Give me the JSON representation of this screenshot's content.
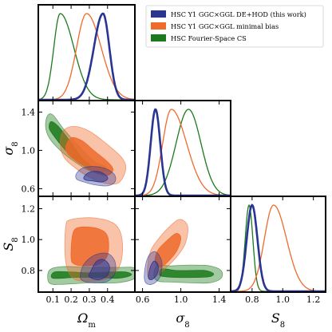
{
  "chart_data": {
    "type": "corner",
    "parameters": [
      {
        "key": "om",
        "label": "Ω",
        "sub": "m",
        "range": [
          0.02,
          0.55
        ],
        "ticks": [
          0.1,
          0.2,
          0.3,
          0.4
        ],
        "tick_labels": [
          "0.1",
          "0.2",
          "0.3",
          "0.4"
        ]
      },
      {
        "key": "s8",
        "label": "σ",
        "sub": "8",
        "range": [
          0.52,
          1.52
        ],
        "ticks": [
          0.6,
          1.0,
          1.4
        ],
        "tick_labels": [
          "0.6",
          "1.0",
          "1.4"
        ]
      },
      {
        "key": "S8",
        "label": "S",
        "sub": "8",
        "range": [
          0.66,
          1.28
        ],
        "ticks": [
          0.8,
          1.0,
          1.2
        ],
        "tick_labels": [
          "0.8",
          "1.0",
          "1.2"
        ]
      }
    ],
    "axis_labels": {
      "x": [
        {
          "text": "Ω",
          "sub": "m"
        },
        {
          "text": "σ",
          "sub": "8"
        },
        {
          "text": "S",
          "sub": "8"
        }
      ],
      "y": [
        {
          "text": "σ",
          "sub": "8"
        },
        {
          "text": "S",
          "sub": "8"
        }
      ]
    },
    "legend": {
      "placement": "top-right",
      "entries": [
        {
          "label": "HSC Y1 GGC×GGL DE+HOD (this work)",
          "color": "#2a3592"
        },
        {
          "label": "HSC Y1 GGC×GGL minimal bias",
          "color": "#ef6a2b"
        },
        {
          "label": "HSC Fourier-Space CS",
          "color": "#1b7a1b"
        }
      ]
    },
    "series": [
      {
        "color": "#2a3592",
        "marginals": {
          "om": {
            "peak": 0.375,
            "sigma_left": 0.05,
            "sigma_right": 0.035
          },
          "s8": {
            "peak": 0.735,
            "sigma_left": 0.05,
            "sigma_right": 0.05
          },
          "S8": {
            "peak": 0.8,
            "sigma_left": 0.035,
            "sigma_right": 0.035
          }
        },
        "contours": {
          "om_s8": {
            "inner": [
              [
                0.27,
                0.72
              ],
              [
                0.3,
                0.77
              ],
              [
                0.35,
                0.78
              ],
              [
                0.39,
                0.74
              ],
              [
                0.4,
                0.7
              ],
              [
                0.37,
                0.67
              ],
              [
                0.32,
                0.68
              ],
              [
                0.28,
                0.69
              ]
            ],
            "outer": [
              [
                0.23,
                0.76
              ],
              [
                0.27,
                0.82
              ],
              [
                0.34,
                0.83
              ],
              [
                0.4,
                0.8
              ],
              [
                0.44,
                0.74
              ],
              [
                0.44,
                0.67
              ],
              [
                0.4,
                0.63
              ],
              [
                0.33,
                0.64
              ],
              [
                0.27,
                0.67
              ],
              [
                0.23,
                0.7
              ]
            ]
          },
          "om_S8": {
            "inner": [
              [
                0.3,
                0.76
              ],
              [
                0.31,
                0.8
              ],
              [
                0.34,
                0.86
              ],
              [
                0.38,
                0.87
              ],
              [
                0.41,
                0.83
              ],
              [
                0.4,
                0.77
              ],
              [
                0.35,
                0.74
              ]
            ],
            "outer": [
              [
                0.25,
                0.76
              ],
              [
                0.27,
                0.84
              ],
              [
                0.33,
                0.9
              ],
              [
                0.4,
                0.91
              ],
              [
                0.44,
                0.86
              ],
              [
                0.44,
                0.78
              ],
              [
                0.4,
                0.73
              ],
              [
                0.33,
                0.72
              ],
              [
                0.27,
                0.73
              ]
            ]
          },
          "s8_S8": {
            "inner": [
              [
                0.66,
                0.76
              ],
              [
                0.68,
                0.82
              ],
              [
                0.72,
                0.86
              ],
              [
                0.76,
                0.84
              ],
              [
                0.76,
                0.79
              ],
              [
                0.72,
                0.75
              ],
              [
                0.68,
                0.74
              ]
            ],
            "outer": [
              [
                0.62,
                0.74
              ],
              [
                0.63,
                0.83
              ],
              [
                0.67,
                0.9
              ],
              [
                0.74,
                0.92
              ],
              [
                0.8,
                0.86
              ],
              [
                0.79,
                0.77
              ],
              [
                0.73,
                0.72
              ],
              [
                0.66,
                0.71
              ]
            ]
          }
        }
      },
      {
        "color": "#ef6a2b",
        "marginals": {
          "om": {
            "peak": 0.285,
            "sigma_left": 0.055,
            "sigma_right": 0.08
          },
          "s8": {
            "peak": 0.9,
            "sigma_left": 0.09,
            "sigma_right": 0.16
          },
          "S8": {
            "peak": 0.94,
            "sigma_left": 0.06,
            "sigma_right": 0.085
          }
        },
        "contours": {
          "om_s8": {
            "inner": [
              [
                0.17,
                1.02
              ],
              [
                0.2,
                1.13
              ],
              [
                0.26,
                1.1
              ],
              [
                0.33,
                0.99
              ],
              [
                0.4,
                0.88
              ],
              [
                0.43,
                0.8
              ],
              [
                0.4,
                0.74
              ],
              [
                0.33,
                0.77
              ],
              [
                0.26,
                0.85
              ],
              [
                0.2,
                0.93
              ]
            ],
            "outer": [
              [
                0.14,
                1.08
              ],
              [
                0.16,
                1.21
              ],
              [
                0.22,
                1.25
              ],
              [
                0.3,
                1.2
              ],
              [
                0.4,
                1.06
              ],
              [
                0.48,
                0.92
              ],
              [
                0.5,
                0.8
              ],
              [
                0.46,
                0.66
              ],
              [
                0.38,
                0.66
              ],
              [
                0.3,
                0.72
              ],
              [
                0.22,
                0.82
              ],
              [
                0.16,
                0.93
              ]
            ]
          },
          "om_S8": {
            "inner": [
              [
                0.2,
                0.88
              ],
              [
                0.21,
                1.04
              ],
              [
                0.25,
                1.08
              ],
              [
                0.35,
                1.07
              ],
              [
                0.4,
                1.02
              ],
              [
                0.4,
                0.9
              ],
              [
                0.35,
                0.84
              ],
              [
                0.27,
                0.83
              ],
              [
                0.22,
                0.84
              ]
            ],
            "outer": [
              [
                0.17,
                0.86
              ],
              [
                0.17,
                1.08
              ],
              [
                0.2,
                1.13
              ],
              [
                0.33,
                1.14
              ],
              [
                0.44,
                1.1
              ],
              [
                0.48,
                1.0
              ],
              [
                0.47,
                0.84
              ],
              [
                0.4,
                0.75
              ],
              [
                0.3,
                0.73
              ],
              [
                0.21,
                0.75
              ]
            ]
          },
          "s8_S8": {
            "inner": [
              [
                0.73,
                0.86
              ],
              [
                0.76,
                0.93
              ],
              [
                0.85,
                0.99
              ],
              [
                0.95,
                1.04
              ],
              [
                1.0,
                1.01
              ],
              [
                0.96,
                0.93
              ],
              [
                0.87,
                0.86
              ],
              [
                0.78,
                0.82
              ]
            ],
            "outer": [
              [
                0.65,
                0.8
              ],
              [
                0.68,
                0.92
              ],
              [
                0.76,
                1.0
              ],
              [
                0.86,
                1.07
              ],
              [
                0.98,
                1.13
              ],
              [
                1.07,
                1.09
              ],
              [
                1.05,
                0.98
              ],
              [
                0.96,
                0.89
              ],
              [
                0.85,
                0.82
              ],
              [
                0.74,
                0.76
              ],
              [
                0.67,
                0.75
              ]
            ]
          }
        }
      },
      {
        "color": "#1b7a1b",
        "marginals": {
          "om": {
            "peak": 0.14,
            "sigma_left": 0.035,
            "sigma_right": 0.075
          },
          "s8": {
            "peak": 1.08,
            "sigma_left": 0.13,
            "sigma_right": 0.13
          },
          "S8": {
            "peak": 0.78,
            "sigma_left": 0.025,
            "sigma_right": 0.025
          }
        },
        "contours": {
          "om_s8": {
            "inner": [
              [
                0.08,
                1.23
              ],
              [
                0.09,
                1.3
              ],
              [
                0.13,
                1.25
              ],
              [
                0.2,
                1.08
              ],
              [
                0.26,
                0.92
              ],
              [
                0.31,
                0.84
              ],
              [
                0.29,
                0.82
              ],
              [
                0.22,
                0.9
              ],
              [
                0.16,
                1.02
              ],
              [
                0.11,
                1.14
              ]
            ],
            "outer": [
              [
                0.06,
                1.25
              ],
              [
                0.07,
                1.36
              ],
              [
                0.1,
                1.37
              ],
              [
                0.16,
                1.22
              ],
              [
                0.25,
                1.03
              ],
              [
                0.33,
                0.88
              ],
              [
                0.39,
                0.83
              ],
              [
                0.37,
                0.77
              ],
              [
                0.3,
                0.79
              ],
              [
                0.22,
                0.88
              ],
              [
                0.14,
                1.0
              ],
              [
                0.08,
                1.13
              ]
            ]
          },
          "om_S8": {
            "inner": [
              [
                0.1,
                0.75
              ],
              [
                0.11,
                0.79
              ],
              [
                0.2,
                0.79
              ],
              [
                0.3,
                0.785
              ],
              [
                0.42,
                0.79
              ],
              [
                0.5,
                0.79
              ],
              [
                0.53,
                0.77
              ],
              [
                0.46,
                0.75
              ],
              [
                0.35,
                0.755
              ],
              [
                0.22,
                0.755
              ]
            ],
            "outer": [
              [
                0.08,
                0.72
              ],
              [
                0.08,
                0.8
              ],
              [
                0.15,
                0.825
              ],
              [
                0.3,
                0.82
              ],
              [
                0.45,
                0.82
              ],
              [
                0.55,
                0.815
              ],
              [
                0.55,
                0.75
              ],
              [
                0.45,
                0.72
              ],
              [
                0.3,
                0.72
              ],
              [
                0.15,
                0.71
              ]
            ]
          },
          "s8_S8": {
            "inner": [
              [
                0.78,
                0.77
              ],
              [
                0.8,
                0.81
              ],
              [
                0.95,
                0.8
              ],
              [
                1.1,
                0.8
              ],
              [
                1.25,
                0.8
              ],
              [
                1.34,
                0.78
              ],
              [
                1.3,
                0.76
              ],
              [
                1.15,
                0.755
              ],
              [
                0.95,
                0.755
              ],
              [
                0.83,
                0.76
              ]
            ],
            "outer": [
              [
                0.72,
                0.76
              ],
              [
                0.75,
                0.83
              ],
              [
                0.9,
                0.83
              ],
              [
                1.1,
                0.835
              ],
              [
                1.3,
                0.83
              ],
              [
                1.42,
                0.8
              ],
              [
                1.42,
                0.75
              ],
              [
                1.3,
                0.72
              ],
              [
                1.1,
                0.72
              ],
              [
                0.9,
                0.725
              ],
              [
                0.77,
                0.73
              ]
            ]
          }
        }
      }
    ]
  }
}
